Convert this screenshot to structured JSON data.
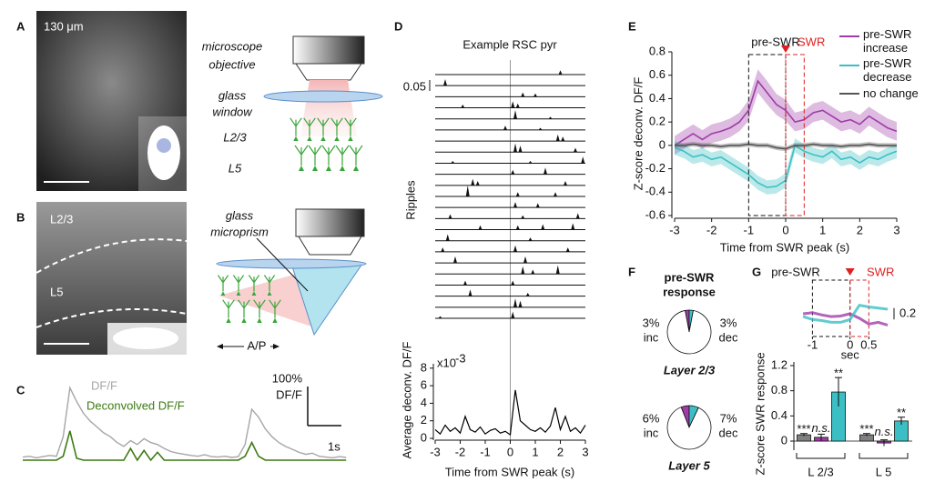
{
  "figure": {
    "panel_labels": [
      "A",
      "B",
      "C",
      "D",
      "E",
      "F",
      "G"
    ],
    "a_scale": "130 μm",
    "a_diagram_labels": [
      "microscope",
      "objective",
      "glass",
      "window",
      "L2/3",
      "L5"
    ],
    "b_image_labels": [
      "L2/3",
      "L5"
    ],
    "b_diagram_labels": [
      "glass",
      "microprism",
      "A/P"
    ]
  },
  "chart_data": [
    {
      "type": "trace",
      "x": [
        0,
        0.2,
        0.4,
        0.6,
        0.8,
        1,
        1.2,
        1.4,
        1.6,
        1.8,
        2,
        2.2,
        2.4,
        2.6,
        2.8,
        3,
        3.2,
        3.4,
        3.6,
        3.8,
        4,
        4.2,
        4.4,
        4.6,
        4.8,
        5,
        5.2,
        5.4,
        5.6,
        5.8,
        6,
        6.2,
        6.4,
        6.6,
        6.8,
        7,
        7.2,
        7.4,
        7.6,
        7.8,
        8,
        8.2,
        8.4,
        8.6,
        8.8,
        9,
        9.2,
        9.4,
        9.6
      ],
      "series": [
        {
          "name": "DF/F",
          "color": "#a6a6a6",
          "values": [
            8,
            10,
            6,
            9,
            12,
            10,
            60,
            185,
            150,
            120,
            100,
            85,
            70,
            60,
            45,
            35,
            50,
            40,
            55,
            45,
            40,
            30,
            22,
            18,
            15,
            12,
            10,
            14,
            9,
            8,
            10,
            7,
            9,
            40,
            130,
            110,
            80,
            60,
            45,
            35,
            28,
            20,
            15,
            18,
            10,
            8,
            6,
            9,
            7
          ]
        },
        {
          "name": "Deconvolved DF/F",
          "color": "#3d7a12",
          "values": [
            0,
            0,
            0,
            0,
            0,
            0,
            10,
            75,
            5,
            0,
            0,
            0,
            0,
            0,
            0,
            0,
            30,
            0,
            25,
            0,
            20,
            0,
            0,
            0,
            0,
            0,
            0,
            0,
            0,
            0,
            0,
            0,
            0,
            10,
            45,
            10,
            0,
            0,
            0,
            0,
            0,
            0,
            0,
            0,
            0,
            0,
            0,
            0,
            0
          ]
        }
      ],
      "scale_bar": {
        "y": {
          "value": 100,
          "label": "100%"
        },
        "y_unit": "DF/F",
        "x": {
          "value": 1,
          "label": "1s"
        }
      }
    },
    {
      "type": "raster",
      "title": "Example RSC pyr",
      "ylabel": "Ripples",
      "xlim": [
        -3,
        3
      ],
      "scale_bar": 0.05,
      "rows": [
        [
          [
            2.0,
            0.02
          ]
        ],
        [
          [
            -2.6,
            0.03
          ]
        ],
        [
          [
            0.5,
            0.02
          ],
          [
            1.0,
            0.015
          ]
        ],
        [
          [
            -1.9,
            0.015
          ],
          [
            0.1,
            0.03
          ],
          [
            0.3,
            0.02
          ]
        ],
        [
          [
            0.2,
            0.04
          ],
          [
            1.6,
            0.01
          ]
        ],
        [
          [
            -0.2,
            0.02
          ],
          [
            1.2,
            0.01
          ]
        ],
        [
          [
            1.9,
            0.03
          ],
          [
            2.1,
            0.02
          ]
        ],
        [
          [
            0.2,
            0.04
          ],
          [
            0.4,
            0.03
          ],
          [
            2.6,
            0.02
          ]
        ],
        [
          [
            -2.3,
            0.01
          ],
          [
            0.8,
            0.01
          ],
          [
            2.9,
            0.03
          ]
        ],
        [
          [
            0.1,
            0.02
          ],
          [
            1.4,
            0.03
          ]
        ],
        [
          [
            -1.5,
            0.03
          ],
          [
            -1.3,
            0.02
          ],
          [
            2.2,
            0.02
          ]
        ],
        [
          [
            -1.7,
            0.05
          ],
          [
            0.3,
            0.02
          ],
          [
            1.8,
            0.02
          ]
        ],
        [
          [
            0.2,
            0.025
          ],
          [
            1.1,
            0.02
          ]
        ],
        [
          [
            -2.4,
            0.02
          ],
          [
            0.5,
            0.015
          ],
          [
            2.7,
            0.025
          ]
        ],
        [
          [
            -1.2,
            0.02
          ],
          [
            0.3,
            0.02
          ],
          [
            1.3,
            0.025
          ],
          [
            2.5,
            0.03
          ]
        ],
        [
          [
            -2.5,
            0.03
          ],
          [
            0.8,
            0.015
          ]
        ],
        [
          [
            -2.7,
            0.02
          ],
          [
            0.2,
            0.03
          ],
          [
            2.3,
            0.02
          ]
        ],
        [
          [
            -2.2,
            0.03
          ],
          [
            0.6,
            0.03
          ]
        ],
        [
          [
            0.5,
            0.035
          ],
          [
            0.9,
            0.02
          ],
          [
            1.9,
            0.04
          ]
        ],
        [
          [
            -1.8,
            0.02
          ],
          [
            0.1,
            0.02
          ]
        ],
        [
          [
            -1.6,
            0.03
          ],
          [
            0.7,
            0.015
          ]
        ],
        [
          [
            0.2,
            0.04
          ],
          [
            0.4,
            0.03
          ]
        ],
        [
          [
            -2.8,
            0.01
          ],
          [
            0.1,
            0.03
          ]
        ]
      ]
    },
    {
      "type": "line",
      "xlabel": "Time from SWR peak (s)",
      "ylabel": "Average deconv. DF/F",
      "y_multiplier": [
        "x10",
        "-3"
      ],
      "color": "#000000",
      "x": [
        -3,
        -2.8,
        -2.6,
        -2.4,
        -2.2,
        -2,
        -1.8,
        -1.6,
        -1.4,
        -1.2,
        -1,
        -0.8,
        -0.6,
        -0.4,
        -0.2,
        0,
        0.2,
        0.4,
        0.6,
        0.8,
        1,
        1.2,
        1.4,
        1.6,
        1.8,
        2,
        2.2,
        2.4,
        2.6,
        2.8,
        3
      ],
      "values": [
        1,
        0.5,
        1.5,
        0.8,
        1.2,
        0.6,
        2.5,
        1,
        0.7,
        1.3,
        0.5,
        0.9,
        1.1,
        0.6,
        0.8,
        0.4,
        5.5,
        2,
        1.5,
        1,
        0.8,
        1.2,
        0.7,
        1.4,
        3.5,
        1,
        2.5,
        0.8,
        1.2,
        0.6,
        1.5
      ],
      "xlim": [
        -3,
        3
      ],
      "xticks": [
        -3,
        -2,
        -1,
        0,
        1,
        2,
        3
      ],
      "ylim": [
        0,
        8.5
      ],
      "yticks": [
        0,
        2,
        4,
        6,
        8
      ]
    },
    {
      "type": "band_line",
      "xlabel": "Time from SWR peak (s)",
      "ylabel": "Z-score deconv. DF/F",
      "annotations": [
        "pre-SWR",
        "SWR"
      ],
      "windows": [
        [
          -1,
          0
        ],
        [
          0,
          0.5
        ]
      ],
      "x": [
        -3,
        -2.75,
        -2.5,
        -2.25,
        -2,
        -1.75,
        -1.5,
        -1.25,
        -1,
        -0.75,
        -0.5,
        -0.25,
        0,
        0.25,
        0.5,
        0.75,
        1,
        1.25,
        1.5,
        1.75,
        2,
        2.25,
        2.5,
        2.75,
        3
      ],
      "series": [
        {
          "name": "pre-SWR increase",
          "color": "#a03ca8",
          "values": [
            0,
            0.05,
            0.1,
            0.05,
            0.1,
            0.12,
            0.15,
            0.2,
            0.3,
            0.55,
            0.45,
            0.35,
            0.3,
            0.2,
            0.22,
            0.28,
            0.3,
            0.25,
            0.2,
            0.22,
            0.18,
            0.25,
            0.2,
            0.15,
            0.12
          ],
          "errors": [
            0.08,
            0.08,
            0.08,
            0.08,
            0.08,
            0.08,
            0.08,
            0.08,
            0.09,
            0.1,
            0.1,
            0.09,
            0.09,
            0.08,
            0.08,
            0.08,
            0.08,
            0.08,
            0.08,
            0.08,
            0.08,
            0.08,
            0.08,
            0.08,
            0.08
          ]
        },
        {
          "name": "pre-SWR decrease",
          "color": "#3bbfc4",
          "values": [
            -0.02,
            -0.05,
            -0.1,
            -0.08,
            -0.12,
            -0.1,
            -0.15,
            -0.2,
            -0.25,
            -0.32,
            -0.36,
            -0.35,
            -0.3,
            0,
            -0.05,
            -0.08,
            -0.1,
            -0.05,
            -0.12,
            -0.1,
            -0.15,
            -0.1,
            -0.12,
            -0.08,
            -0.05
          ],
          "errors": [
            0.06,
            0.06,
            0.06,
            0.06,
            0.06,
            0.06,
            0.06,
            0.06,
            0.06,
            0.06,
            0.06,
            0.06,
            0.06,
            0.06,
            0.06,
            0.06,
            0.06,
            0.06,
            0.06,
            0.06,
            0.06,
            0.06,
            0.06,
            0.06,
            0.06
          ]
        },
        {
          "name": "no change",
          "color": "#555555",
          "values": [
            0,
            0,
            0.01,
            0,
            0,
            -0.01,
            0,
            0,
            0.01,
            0,
            0,
            -0.02,
            -0.03,
            0,
            0,
            0.01,
            0,
            0,
            -0.01,
            0,
            0,
            0.01,
            0,
            0,
            0
          ],
          "errors": [
            0.02,
            0.02,
            0.02,
            0.02,
            0.02,
            0.02,
            0.02,
            0.02,
            0.02,
            0.02,
            0.02,
            0.02,
            0.02,
            0.02,
            0.02,
            0.02,
            0.02,
            0.02,
            0.02,
            0.02,
            0.02,
            0.02,
            0.02,
            0.02,
            0.02
          ]
        }
      ],
      "xlim": [
        -3,
        3
      ],
      "xticks": [
        -3,
        -2,
        -1,
        0,
        1,
        2,
        3
      ],
      "ylim": [
        -0.6,
        0.8
      ],
      "yticks": [
        -0.6,
        -0.4,
        -0.2,
        0,
        0.2,
        0.4,
        0.6,
        0.8
      ]
    },
    {
      "type": "pie",
      "title": [
        "pre-SWR",
        "response"
      ],
      "label": "Layer 2/3",
      "categories": [
        "inc",
        "dec",
        null
      ],
      "values": [
        3,
        3,
        94
      ],
      "value_labels": [
        "3%",
        "3%",
        null
      ],
      "colors": [
        "#a03ca8",
        "#3bbfc4",
        "#ffffff"
      ]
    },
    {
      "type": "pie",
      "label": "Layer 5",
      "categories": [
        "inc",
        "dec",
        null
      ],
      "values": [
        6,
        7,
        87
      ],
      "value_labels": [
        "6%",
        "7%",
        null
      ],
      "colors": [
        "#a03ca8",
        "#3bbfc4",
        "#ffffff"
      ]
    },
    {
      "type": "inset_line",
      "annotations": [
        "pre-SWR",
        "SWR"
      ],
      "windows": [
        [
          -1,
          0
        ],
        [
          0,
          0.5
        ]
      ],
      "xlabel": "sec",
      "scale_bar": 0.2,
      "x": [
        -1.25,
        -1,
        -0.75,
        -0.5,
        -0.25,
        0,
        0.25,
        0.5,
        0.75,
        1
      ],
      "series": [
        {
          "color": "#a03ca8",
          "values": [
            0.1,
            0.12,
            0.08,
            0.05,
            0.06,
            0.1,
            0.02,
            -0.08,
            -0.05,
            -0.1
          ]
        },
        {
          "color": "#3bbfc4",
          "values": [
            0.05,
            0,
            -0.02,
            -0.05,
            -0.05,
            0,
            0.25,
            0.22,
            0.2,
            0.18
          ]
        }
      ],
      "xlim": [
        -1.3,
        1
      ],
      "xticks": [
        -1,
        0,
        0.5
      ],
      "ylim": [
        -0.3,
        0.5
      ]
    },
    {
      "type": "bar",
      "ylabel": "Z-score SWR response",
      "groups": [
        "L 2/3",
        "L 5"
      ],
      "values": [
        0.1,
        0.06,
        0.78,
        0.1,
        -0.03,
        0.32
      ],
      "errors": [
        0.02,
        0.05,
        0.23,
        0.02,
        0.05,
        0.06
      ],
      "colors": [
        "#808080",
        "#a03ca8",
        "#3bbfc4",
        "#808080",
        "#a03ca8",
        "#3bbfc4"
      ],
      "significance": [
        "***",
        "n.s.",
        "**",
        "***",
        "n.s.",
        "**"
      ],
      "ylim": [
        -0.15,
        1.2
      ],
      "yticks": [
        0,
        0.4,
        0.8,
        1.2
      ]
    }
  ]
}
